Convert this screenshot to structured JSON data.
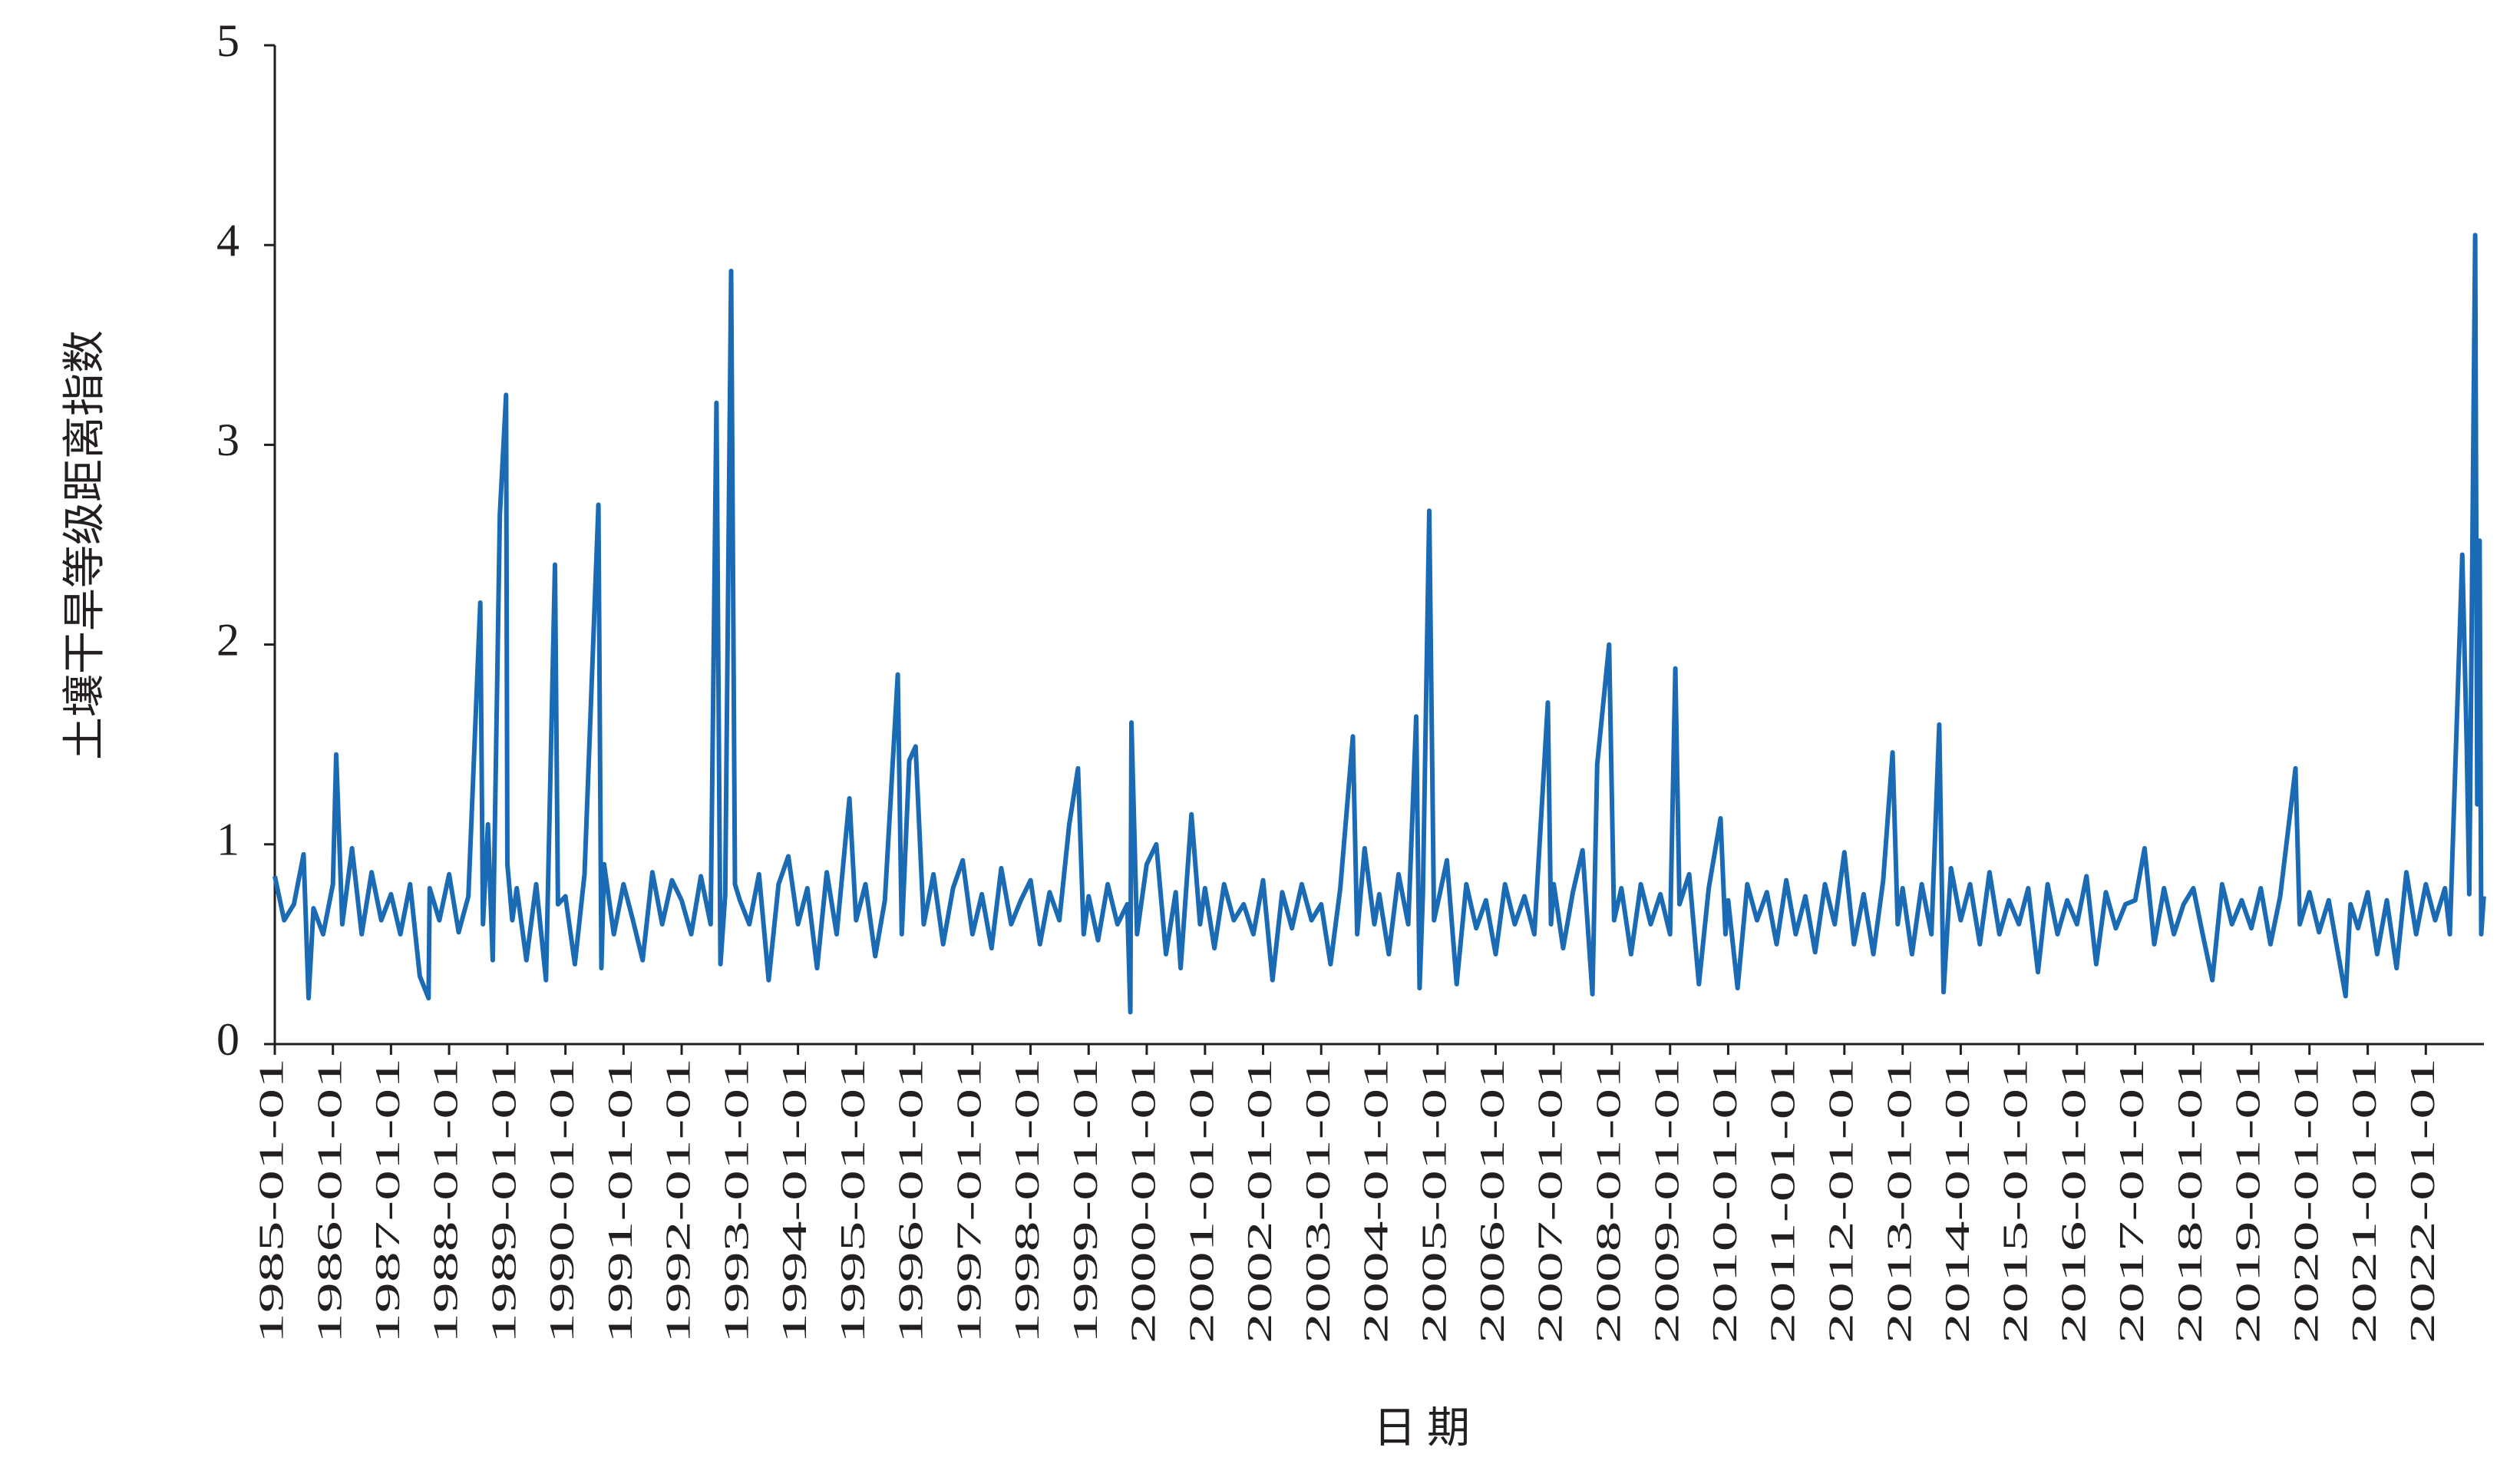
{
  "chart_data": {
    "type": "line",
    "y_label": "土壤干旱等级距离指数",
    "x_label": "日 期",
    "x": [
      "1985-01-01",
      "1985-03-01",
      "1985-05-01",
      "1985-07-01",
      "1985-08-01",
      "1985-09-01",
      "1985-11-01",
      "1986-01-01",
      "1986-01-22",
      "1986-03-01",
      "1986-05-01",
      "1986-07-01",
      "1986-09-01",
      "1986-11-01",
      "1987-01-01",
      "1987-03-01",
      "1987-05-01",
      "1987-07-01",
      "1987-08-25",
      "1987-09-01",
      "1987-11-01",
      "1988-01-01",
      "1988-03-01",
      "1988-05-01",
      "1988-07-15",
      "1988-08-01",
      "1988-09-01",
      "1988-10-01",
      "1988-11-15",
      "1988-12-24",
      "1989-01-01",
      "1989-02-01",
      "1989-03-01",
      "1989-05-01",
      "1989-07-01",
      "1989-09-01",
      "1989-10-27",
      "1989-11-15",
      "1990-01-01",
      "1990-03-01",
      "1990-05-01",
      "1990-07-27",
      "1990-08-15",
      "1990-09-01",
      "1990-11-01",
      "1991-01-01",
      "1991-03-01",
      "1991-05-01",
      "1991-07-01",
      "1991-09-01",
      "1991-11-01",
      "1992-01-01",
      "1992-03-01",
      "1992-05-01",
      "1992-07-01",
      "1992-08-07",
      "1992-09-01",
      "1992-10-01",
      "1992-11-07",
      "1992-12-01",
      "1993-01-01",
      "1993-03-01",
      "1993-05-01",
      "1993-07-01",
      "1993-09-01",
      "1993-11-01",
      "1994-01-01",
      "1994-03-01",
      "1994-05-01",
      "1994-07-01",
      "1994-09-01",
      "1994-11-20",
      "1995-01-01",
      "1995-03-01",
      "1995-05-01",
      "1995-07-01",
      "1995-09-20",
      "1995-10-15",
      "1995-12-01",
      "1996-01-10",
      "1996-03-01",
      "1996-05-01",
      "1996-07-01",
      "1996-09-01",
      "1996-11-01",
      "1997-01-01",
      "1997-03-01",
      "1997-05-01",
      "1997-07-01",
      "1997-09-01",
      "1997-11-01",
      "1998-01-01",
      "1998-03-01",
      "1998-05-01",
      "1998-07-01",
      "1998-09-01",
      "1998-10-26",
      "1998-12-01",
      "1999-01-01",
      "1999-03-01",
      "1999-05-01",
      "1999-07-01",
      "1999-09-01",
      "1999-09-20",
      "1999-09-27",
      "1999-11-01",
      "2000-01-01",
      "2000-03-01",
      "2000-05-01",
      "2000-07-01",
      "2000-08-01",
      "2000-10-08",
      "2000-12-01",
      "2001-01-01",
      "2001-03-01",
      "2001-05-01",
      "2001-07-01",
      "2001-09-01",
      "2001-11-01",
      "2002-01-01",
      "2002-03-01",
      "2002-05-01",
      "2002-07-01",
      "2002-09-01",
      "2002-11-01",
      "2003-01-01",
      "2003-03-01",
      "2003-05-01",
      "2003-07-19",
      "2003-08-15",
      "2003-10-01",
      "2003-12-01",
      "2004-01-01",
      "2004-03-01",
      "2004-05-01",
      "2004-07-01",
      "2004-08-20",
      "2004-09-10",
      "2004-10-01",
      "2004-11-10",
      "2004-12-10",
      "2005-01-01",
      "2005-03-01",
      "2005-05-01",
      "2005-07-01",
      "2005-09-01",
      "2005-11-01",
      "2006-01-01",
      "2006-03-01",
      "2006-05-01",
      "2006-07-01",
      "2006-09-01",
      "2006-11-25",
      "2006-12-15",
      "2007-01-01",
      "2007-03-01",
      "2007-05-01",
      "2007-07-01",
      "2007-09-01",
      "2007-10-01",
      "2007-12-15",
      "2008-01-15",
      "2008-03-01",
      "2008-05-01",
      "2008-07-01",
      "2008-09-01",
      "2008-11-01",
      "2009-01-01",
      "2009-02-03",
      "2009-03-01",
      "2009-05-01",
      "2009-07-01",
      "2009-09-01",
      "2009-11-14",
      "2009-12-15",
      "2010-01-01",
      "2010-03-01",
      "2010-05-01",
      "2010-07-01",
      "2010-09-01",
      "2010-11-01",
      "2011-01-01",
      "2011-03-01",
      "2011-05-01",
      "2011-07-01",
      "2011-09-01",
      "2011-11-01",
      "2012-01-01",
      "2012-03-01",
      "2012-05-01",
      "2012-07-01",
      "2012-09-01",
      "2012-10-30",
      "2012-12-01",
      "2013-01-01",
      "2013-03-01",
      "2013-05-01",
      "2013-07-01",
      "2013-08-19",
      "2013-09-15",
      "2013-11-01",
      "2014-01-01",
      "2014-03-01",
      "2014-05-01",
      "2014-07-01",
      "2014-09-01",
      "2014-11-01",
      "2015-01-01",
      "2015-03-01",
      "2015-05-01",
      "2015-07-01",
      "2015-09-01",
      "2015-11-01",
      "2016-01-01",
      "2016-03-01",
      "2016-05-01",
      "2016-07-01",
      "2016-09-01",
      "2016-11-01",
      "2017-01-01",
      "2017-03-01",
      "2017-05-01",
      "2017-07-01",
      "2017-09-01",
      "2017-11-01",
      "2018-01-01",
      "2018-03-01",
      "2018-05-01",
      "2018-07-01",
      "2018-09-01",
      "2018-11-01",
      "2019-01-01",
      "2019-03-01",
      "2019-05-01",
      "2019-07-01",
      "2019-10-05",
      "2019-11-01",
      "2020-01-01",
      "2020-03-01",
      "2020-05-01",
      "2020-08-15",
      "2020-09-15",
      "2020-11-01",
      "2021-01-01",
      "2021-03-01",
      "2021-05-01",
      "2021-07-01",
      "2021-09-01",
      "2021-11-01",
      "2022-01-01",
      "2022-03-01",
      "2022-05-01",
      "2022-06-01",
      "2022-08-18",
      "2022-09-15",
      "2022-10-01",
      "2022-11-07",
      "2022-11-20",
      "2022-12-05",
      "2022-12-15",
      "2022-12-31"
    ],
    "series": [
      {
        "color": "#1a6ab4",
        "values": [
          0.84,
          0.62,
          0.7,
          0.95,
          0.23,
          0.68,
          0.55,
          0.8,
          1.45,
          0.6,
          0.98,
          0.55,
          0.86,
          0.62,
          0.75,
          0.55,
          0.8,
          0.34,
          0.23,
          0.78,
          0.62,
          0.85,
          0.56,
          0.74,
          2.21,
          0.6,
          1.1,
          0.42,
          2.65,
          3.25,
          0.9,
          0.62,
          0.78,
          0.42,
          0.8,
          0.32,
          2.4,
          0.7,
          0.74,
          0.4,
          0.85,
          2.7,
          0.38,
          0.9,
          0.55,
          0.8,
          0.62,
          0.42,
          0.86,
          0.6,
          0.82,
          0.72,
          0.55,
          0.84,
          0.6,
          3.21,
          0.4,
          0.75,
          3.87,
          0.8,
          0.72,
          0.6,
          0.85,
          0.32,
          0.8,
          0.94,
          0.6,
          0.78,
          0.38,
          0.86,
          0.55,
          1.23,
          0.62,
          0.8,
          0.44,
          0.72,
          1.85,
          0.55,
          1.42,
          1.49,
          0.6,
          0.85,
          0.5,
          0.78,
          0.92,
          0.55,
          0.75,
          0.48,
          0.88,
          0.6,
          0.72,
          0.82,
          0.5,
          0.76,
          0.62,
          1.1,
          1.38,
          0.55,
          0.74,
          0.52,
          0.8,
          0.6,
          0.7,
          0.16,
          1.61,
          0.55,
          0.9,
          1.0,
          0.45,
          0.76,
          0.38,
          1.15,
          0.6,
          0.78,
          0.48,
          0.8,
          0.62,
          0.7,
          0.55,
          0.82,
          0.32,
          0.76,
          0.58,
          0.8,
          0.62,
          0.7,
          0.4,
          0.78,
          1.54,
          0.55,
          0.98,
          0.6,
          0.75,
          0.45,
          0.85,
          0.6,
          1.64,
          0.28,
          0.75,
          2.67,
          0.62,
          0.7,
          0.92,
          0.3,
          0.8,
          0.58,
          0.72,
          0.45,
          0.8,
          0.6,
          0.74,
          0.55,
          1.71,
          0.6,
          0.8,
          0.48,
          0.76,
          0.97,
          0.25,
          1.4,
          2.0,
          0.62,
          0.78,
          0.45,
          0.8,
          0.6,
          0.75,
          0.55,
          1.88,
          0.7,
          0.85,
          0.3,
          0.78,
          1.13,
          0.55,
          0.72,
          0.28,
          0.8,
          0.62,
          0.76,
          0.5,
          0.82,
          0.55,
          0.74,
          0.46,
          0.8,
          0.6,
          0.96,
          0.5,
          0.75,
          0.45,
          0.82,
          1.46,
          0.6,
          0.78,
          0.45,
          0.8,
          0.55,
          1.6,
          0.26,
          0.88,
          0.62,
          0.8,
          0.5,
          0.86,
          0.55,
          0.72,
          0.6,
          0.78,
          0.36,
          0.8,
          0.55,
          0.72,
          0.6,
          0.84,
          0.4,
          0.76,
          0.58,
          0.7,
          0.72,
          0.98,
          0.5,
          0.78,
          0.55,
          0.7,
          0.78,
          0.55,
          0.32,
          0.8,
          0.6,
          0.72,
          0.58,
          0.78,
          0.5,
          0.74,
          1.38,
          0.6,
          0.76,
          0.56,
          0.72,
          0.24,
          0.7,
          0.58,
          0.76,
          0.45,
          0.72,
          0.38,
          0.86,
          0.55,
          0.8,
          0.62,
          0.78,
          0.55,
          2.45,
          1.5,
          0.75,
          4.05,
          1.2,
          2.52,
          0.55,
          0.74
        ]
      }
    ],
    "xlim": [
      "1985-01-01",
      "2023-01-01"
    ],
    "xticks": [
      "1985-01-01",
      "1986-01-01",
      "1987-01-01",
      "1988-01-01",
      "1989-01-01",
      "1990-01-01",
      "1991-01-01",
      "1992-01-01",
      "1993-01-01",
      "1994-01-01",
      "1995-01-01",
      "1996-01-01",
      "1997-01-01",
      "1998-01-01",
      "1999-01-01",
      "2000-01-01",
      "2001-01-01",
      "2002-01-01",
      "2003-01-01",
      "2004-01-01",
      "2005-01-01",
      "2006-01-01",
      "2007-01-01",
      "2008-01-01",
      "2009-01-01",
      "2010-01-01",
      "2011-01-01",
      "2012-01-01",
      "2013-01-01",
      "2014-01-01",
      "2015-01-01",
      "2016-01-01",
      "2017-01-01",
      "2018-01-01",
      "2019-01-01",
      "2020-01-01",
      "2021-01-01",
      "2022-01-01"
    ],
    "ylim": [
      0,
      5
    ],
    "yticks": [
      0,
      1,
      2,
      3,
      4,
      5
    ],
    "grid": false
  }
}
